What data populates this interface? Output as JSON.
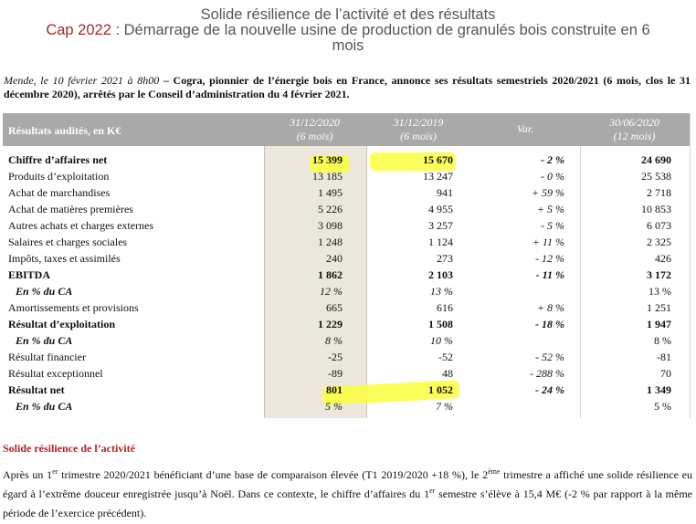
{
  "header": {
    "line1": "Solide résilience de l’activité et des résultats",
    "line2_accent": "Cap 2022 :",
    "line2_rest": " Démarrage de la nouvelle usine de production de granulés bois construite en 6",
    "line3": "mois"
  },
  "intro": {
    "date": "Mende, le 10 février 2021 à 8h00",
    "text": " – Cogra, pionnier de l’énergie bois en France, annonce ses résultats semestriels 2020/2021 (6 mois, clos le 31 décembre 2020), arrêtés par le Conseil d’administration du 4 février 2021."
  },
  "table": {
    "header_label": "Résultats audités, en K€",
    "columns": [
      {
        "date": "31/12/2020",
        "period": "(6 mois)"
      },
      {
        "date": "31/12/2019",
        "period": "(6 mois)"
      },
      {
        "date": "Var.",
        "period": ""
      },
      {
        "date": "30/06/2020",
        "period": "(12 mois)"
      }
    ],
    "rows": [
      {
        "label": "Chiffre d’affaires net",
        "v1": "15 399",
        "v2": "15 670",
        "var": "- 2 %",
        "v4": "24 690",
        "style": "bold"
      },
      {
        "label": "Produits d’exploitation",
        "v1": "13 185",
        "v2": "13 247",
        "var": "- 0 %",
        "v4": "25 538",
        "style": ""
      },
      {
        "label": "Achat de marchandises",
        "v1": "1 495",
        "v2": "941",
        "var": "+ 59 %",
        "v4": "2 718",
        "style": ""
      },
      {
        "label": "Achat de matières premières",
        "v1": "5 226",
        "v2": "4 955",
        "var": "+ 5 %",
        "v4": "10 853",
        "style": ""
      },
      {
        "label": "Autres achats et charges externes",
        "v1": "3 098",
        "v2": "3 257",
        "var": "- 5 %",
        "v4": "6 073",
        "style": ""
      },
      {
        "label": "Salaires et charges sociales",
        "v1": "1 248",
        "v2": "1 124",
        "var": "+ 11 %",
        "v4": "2 325",
        "style": ""
      },
      {
        "label": "Impôts, taxes et assimilés",
        "v1": "240",
        "v2": "273",
        "var": "- 12 %",
        "v4": "426",
        "style": ""
      },
      {
        "label": "EBITDA",
        "v1": "1 862",
        "v2": "2 103",
        "var": "- 11 %",
        "v4": "3 172",
        "style": "bold"
      },
      {
        "label": "En % du CA",
        "v1": "12 %",
        "v2": "13 %",
        "var": "",
        "v4": "13 %",
        "style": "pct"
      },
      {
        "label": "Amortissements et provisions",
        "v1": "665",
        "v2": "616",
        "var": "+ 8 %",
        "v4": "1 251",
        "style": ""
      },
      {
        "label": "Résultat d’exploitation",
        "v1": "1 229",
        "v2": "1 508",
        "var": "- 18 %",
        "v4": "1 947",
        "style": "bold"
      },
      {
        "label": "En % du CA",
        "v1": "8 %",
        "v2": "10 %",
        "var": "",
        "v4": "8 %",
        "style": "pct"
      },
      {
        "label": "Résultat financier",
        "v1": "-25",
        "v2": "-52",
        "var": "- 52 %",
        "v4": "-81",
        "style": ""
      },
      {
        "label": "Résultat exceptionnel",
        "v1": "-89",
        "v2": "48",
        "var": "- 288 %",
        "v4": "70",
        "style": ""
      },
      {
        "label": "Résultat net",
        "v1": "801",
        "v2": "1 052",
        "var": "- 24 %",
        "v4": "1 349",
        "style": "bold"
      },
      {
        "label": "En % du CA",
        "v1": "5 %",
        "v2": "7 %",
        "var": "",
        "v4": "5 %",
        "style": "pct"
      }
    ]
  },
  "section": {
    "title": "Solide résilience de l’activité",
    "p_a": "Après un 1",
    "p_sup1": "er",
    "p_b": " trimestre 2020/2021 bénéficiant d’une base de comparaison élevée (T1 2019/2020 +18 %), le 2",
    "p_sup2": "ème",
    "p_c": " trimestre a affiché une solide résilience eu égard à l’extrême douceur enregistrée jusqu’à Noël. Dans ce contexte, le chiffre d’affaires du 1",
    "p_sup3": "er",
    "p_d": " semestre s’élève à 15,4 M€ (-2 % par rapport à la même période de l’exercice précédent)."
  },
  "colors": {
    "accent": "#a4292c",
    "highlight": "#fbff3d",
    "header_bg": "#a9a9a9",
    "col_shade": "#ebe7dc",
    "section_title": "#b51f24"
  }
}
